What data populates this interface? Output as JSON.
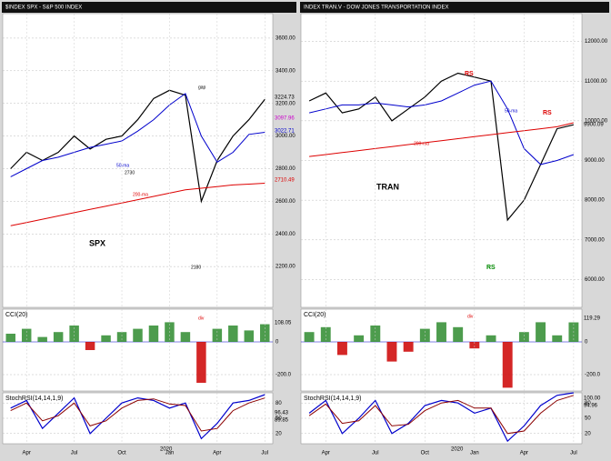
{
  "chart_data": [
    {
      "type": "line",
      "title": "$INDEX SPX - S&P 500 INDEX",
      "x": [
        0,
        1,
        2,
        3,
        4,
        5,
        6,
        7,
        8,
        9,
        10,
        11,
        12,
        13,
        14,
        15,
        16
      ],
      "xlim": [
        -0.5,
        16.5
      ],
      "ylim": [
        1950,
        3750
      ],
      "yticks": [
        {
          "value": 2200,
          "label": "2200.00"
        },
        {
          "value": 2400,
          "label": "2400.00"
        },
        {
          "value": 2600,
          "label": "2600.00"
        },
        {
          "value": 2800,
          "label": "2800.00"
        },
        {
          "value": 3000,
          "label": "3000.00"
        },
        {
          "value": 3200,
          "label": "3200.00"
        },
        {
          "value": 3400,
          "label": "3400.00"
        },
        {
          "value": 3600,
          "label": "3600.00"
        }
      ],
      "grid": true,
      "series": [
        {
          "name": "SPX",
          "color": "#000000",
          "values": [
            2800,
            2900,
            2850,
            2900,
            3000,
            2920,
            2980,
            3000,
            3100,
            3230,
            3280,
            3250,
            2600,
            2850,
            3000,
            3100,
            3224.73
          ]
        },
        {
          "name": "50-ma",
          "color": "#0000cc",
          "values": [
            2750,
            2800,
            2850,
            2870,
            2900,
            2930,
            2950,
            2970,
            3030,
            3100,
            3190,
            3260,
            3000,
            2840,
            2900,
            3010,
            3022.71
          ]
        },
        {
          "name": "200-ma",
          "color": "#dd0000",
          "values": [
            2450,
            2470,
            2490,
            2510,
            2530,
            2550,
            2570,
            2590,
            2610,
            2630,
            2650,
            2670,
            2680,
            2690,
            2700,
            2705,
            2710.49
          ]
        }
      ],
      "annotations": [
        "3224.73",
        "3097.96",
        "3022.71",
        "2710.49",
        "2730",
        "2180",
        "gap"
      ]
    },
    {
      "type": "bar",
      "title": "CCI(20)",
      "x": [
        0,
        1,
        2,
        3,
        4,
        5,
        6,
        7,
        8,
        9,
        10,
        11,
        12,
        13,
        14,
        15,
        16
      ],
      "xlim": [
        -0.5,
        16.5
      ],
      "ylim": [
        -300,
        200
      ],
      "yticks": [
        {
          "value": -200,
          "label": "-200.0"
        },
        {
          "value": 0,
          "label": "0"
        }
      ],
      "grid": true,
      "color": "#2e8b2e",
      "negative_color": "#cc0000",
      "values": [
        50,
        80,
        30,
        60,
        100,
        -50,
        40,
        60,
        80,
        100,
        120,
        60,
        -250,
        80,
        100,
        70,
        108.05
      ],
      "annotations": [
        "108.05",
        "div"
      ]
    },
    {
      "type": "line",
      "title": "StochRSI(14,14,1,9)",
      "x": [
        0,
        1,
        2,
        3,
        4,
        5,
        6,
        7,
        8,
        9,
        10,
        11,
        12,
        13,
        14,
        15,
        16
      ],
      "xlim": [
        -0.5,
        16.5
      ],
      "ylim": [
        0,
        100
      ],
      "yticks": [
        20,
        50,
        80
      ],
      "grid": true,
      "xticks": [
        {
          "value": 1,
          "label": "Apr"
        },
        {
          "value": 4,
          "label": "Jul"
        },
        {
          "value": 7,
          "label": "Oct"
        },
        {
          "value": 10,
          "label": "Jan"
        },
        {
          "value": 13,
          "label": "Apr"
        },
        {
          "value": 16,
          "label": "Jul"
        }
      ],
      "series": [
        {
          "color": "#0000cc",
          "values": [
            70,
            85,
            30,
            60,
            90,
            20,
            50,
            80,
            90,
            85,
            70,
            80,
            10,
            40,
            80,
            85,
            96.43
          ]
        },
        {
          "color": "#8b0000",
          "values": [
            65,
            80,
            45,
            55,
            80,
            35,
            45,
            70,
            85,
            88,
            78,
            75,
            25,
            30,
            65,
            80,
            89.85
          ]
        }
      ],
      "annotations": [
        "96.43",
        "89.85",
        "2020"
      ]
    },
    {
      "type": "line",
      "title": "INDEX TRAN.V - DOW JONES TRANSPORTATION INDEX",
      "x": [
        0,
        1,
        2,
        3,
        4,
        5,
        6,
        7,
        8,
        9,
        10,
        11,
        12,
        13,
        14,
        15,
        16
      ],
      "xlim": [
        -0.5,
        16.5
      ],
      "ylim": [
        5300,
        12700
      ],
      "yticks": [
        {
          "value": 6000,
          "label": "6000.00"
        },
        {
          "value": 7000,
          "label": "7000.00"
        },
        {
          "value": 8000,
          "label": "8000.00"
        },
        {
          "value": 9000,
          "label": "9000.00"
        },
        {
          "value": 10000,
          "label": "10000.00"
        },
        {
          "value": 11000,
          "label": "11000.00"
        },
        {
          "value": 12000,
          "label": "12000.00"
        }
      ],
      "grid": true,
      "series": [
        {
          "name": "TRAN",
          "color": "#000000",
          "values": [
            10500,
            10700,
            10200,
            10300,
            10600,
            10000,
            10300,
            10600,
            11000,
            11200,
            11100,
            11000,
            7500,
            8000,
            8900,
            9800,
            9900.09
          ]
        },
        {
          "name": "50-ma",
          "color": "#0000cc",
          "values": [
            10200,
            10300,
            10400,
            10400,
            10450,
            10400,
            10350,
            10400,
            10500,
            10700,
            10900,
            11000,
            10300,
            9300,
            8900,
            9000,
            9150
          ]
        },
        {
          "name": "200-ma",
          "color": "#dd0000",
          "values": [
            9100,
            9150,
            9200,
            9250,
            9300,
            9350,
            9400,
            9450,
            9500,
            9550,
            9600,
            9650,
            9700,
            9750,
            9800,
            9850,
            9950
          ]
        }
      ],
      "annotations": [
        "9900.09",
        "RS",
        "RS",
        "RS"
      ]
    },
    {
      "type": "bar",
      "title": "CCI(20)",
      "x": [
        0,
        1,
        2,
        3,
        4,
        5,
        6,
        7,
        8,
        9,
        10,
        11,
        12,
        13,
        14,
        15,
        16
      ],
      "xlim": [
        -0.5,
        16.5
      ],
      "ylim": [
        -300,
        200
      ],
      "yticks": [
        {
          "value": -200,
          "label": "-200.0"
        },
        {
          "value": 0,
          "label": "0"
        }
      ],
      "grid": true,
      "color": "#2e8b2e",
      "negative_color": "#cc0000",
      "values": [
        60,
        90,
        -80,
        40,
        100,
        -120,
        -60,
        80,
        120,
        90,
        -40,
        40,
        -280,
        60,
        120,
        40,
        119.29
      ],
      "annotations": [
        "119.29",
        "div"
      ]
    },
    {
      "type": "line",
      "title": "StochRSI(14,14,1,9)",
      "x": [
        0,
        1,
        2,
        3,
        4,
        5,
        6,
        7,
        8,
        9,
        10,
        11,
        12,
        13,
        14,
        15,
        16
      ],
      "xlim": [
        -0.5,
        16.5
      ],
      "ylim": [
        0,
        100
      ],
      "yticks": [
        20,
        50,
        80
      ],
      "grid": true,
      "xticks": [
        {
          "value": 1,
          "label": "Apr"
        },
        {
          "value": 4,
          "label": "Jul"
        },
        {
          "value": 7,
          "label": "Oct"
        },
        {
          "value": 10,
          "label": "Jan"
        },
        {
          "value": 13,
          "label": "Apr"
        },
        {
          "value": 16,
          "label": "Jul"
        }
      ],
      "series": [
        {
          "color": "#0000cc",
          "values": [
            60,
            85,
            20,
            50,
            85,
            20,
            40,
            75,
            85,
            80,
            60,
            70,
            5,
            35,
            75,
            95,
            100
          ]
        },
        {
          "color": "#8b0000",
          "values": [
            55,
            78,
            40,
            45,
            75,
            35,
            38,
            65,
            80,
            85,
            70,
            70,
            20,
            25,
            60,
            85,
            94.96
          ]
        }
      ],
      "annotations": [
        "100.00",
        "94.96",
        "2020"
      ]
    }
  ]
}
